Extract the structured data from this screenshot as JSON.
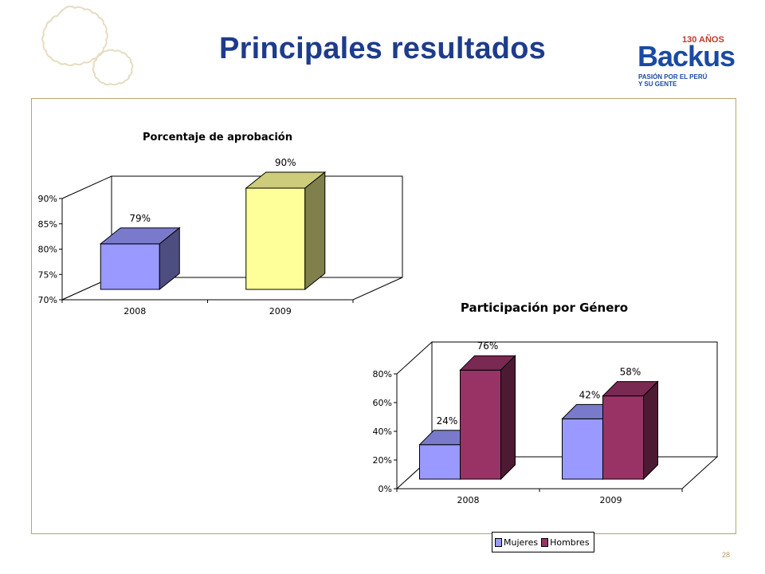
{
  "slide": {
    "title": "Principales resultados",
    "page_number": "28"
  },
  "logo": {
    "anniversary": "130 AÑOS",
    "brand": "Backus",
    "tagline_line1": "PASIÓN POR EL PERÚ",
    "tagline_line2": "Y SU GENTE"
  },
  "colors": {
    "title": "#1e3c8c",
    "frame_border": "#b9a468",
    "mujeres": "#9999ff",
    "hombres": "#993366",
    "bar_2009": "#ffff99"
  },
  "chart_data": [
    {
      "type": "bar",
      "title": "Porcentaje de aprobación",
      "categories": [
        "2008",
        "2009"
      ],
      "values": [
        79,
        90
      ],
      "data_labels": [
        "79%",
        "90%"
      ],
      "ylim": [
        70,
        90
      ],
      "yticks": [
        "70%",
        "75%",
        "80%",
        "85%",
        "90%"
      ],
      "bar_colors": [
        "#9999ff",
        "#ffff99"
      ],
      "style": "3d-column",
      "legend": "none"
    },
    {
      "type": "bar",
      "title": "Participación por Género",
      "categories": [
        "2008",
        "2009"
      ],
      "series": [
        {
          "name": "Mujeres",
          "values": [
            24,
            42
          ],
          "data_labels": [
            "24%",
            "42%"
          ],
          "color": "#9999ff"
        },
        {
          "name": "Hombres",
          "values": [
            76,
            58
          ],
          "data_labels": [
            "76%",
            "58%"
          ],
          "color": "#993366"
        }
      ],
      "ylim": [
        0,
        80
      ],
      "yticks": [
        "0%",
        "20%",
        "40%",
        "60%",
        "80%"
      ],
      "style": "3d-clustered-column",
      "legend": "bottom"
    }
  ]
}
